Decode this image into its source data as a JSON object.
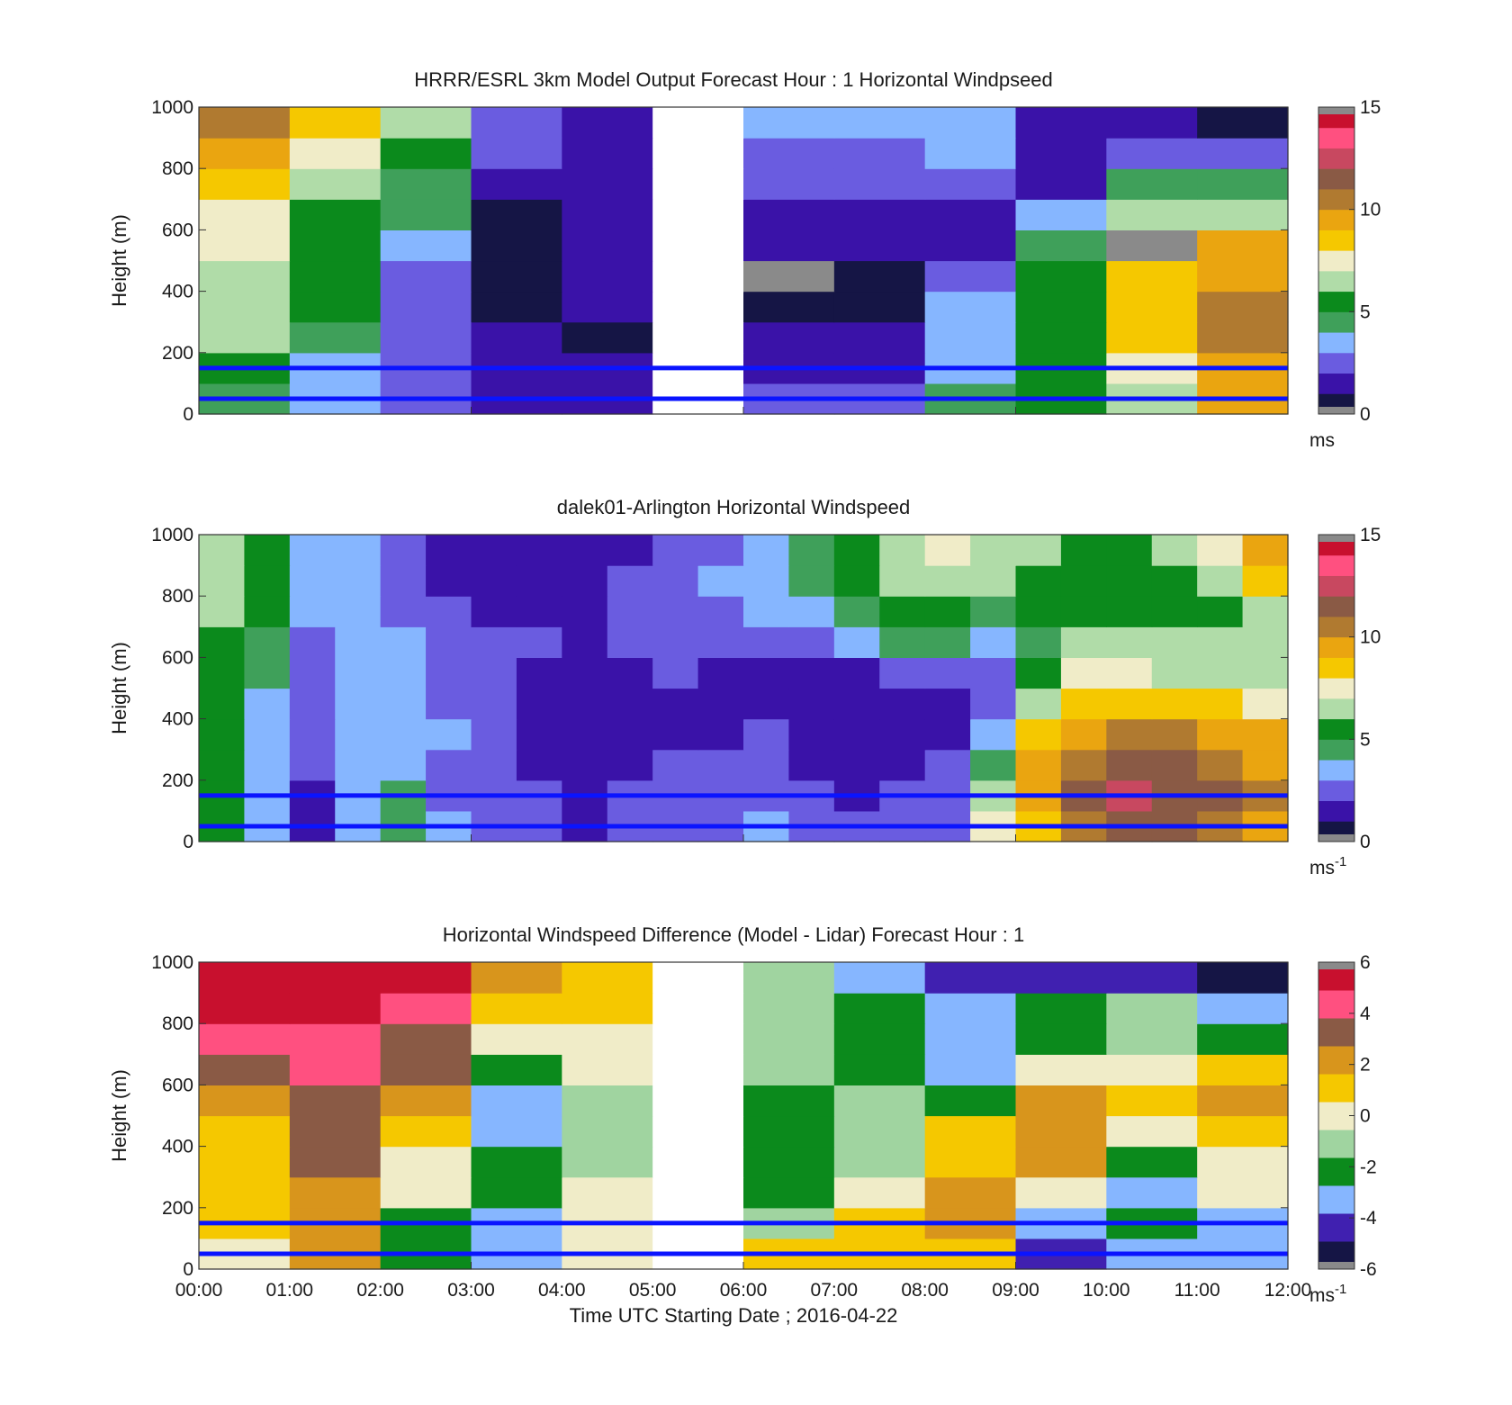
{
  "colors": {
    "speed_scale": [
      "#151545",
      "#3a12a8",
      "#6a5ce0",
      "#86b6ff",
      "#3fa05a",
      "#0b8a1c",
      "#b0dca8",
      "#f0ecc8",
      "#f5c800",
      "#eaa510",
      "#b07a30",
      "#8a5a45",
      "#c84860",
      "#ff5080",
      "#c8102e"
    ],
    "diff_scale": [
      "#151545",
      "#4020b0",
      "#86b6ff",
      "#0b8a1c",
      "#a0d4a0",
      "#f0ecc8",
      "#f5c800",
      "#d8951c",
      "#8a5a45",
      "#ff5080",
      "#c8102e"
    ],
    "blue_line": "#0a14ff",
    "missing": "#8a8a8a"
  },
  "chart_data": [
    {
      "type": "heatmap",
      "title": "HRRR/ESRL 3km Model Output   Forecast Hour : 1 Horizontal Windpseed",
      "ylabel": "Height (m)",
      "xlabel": "",
      "ylim": [
        0,
        1000
      ],
      "yticks": [
        "0",
        "200",
        "400",
        "600",
        "800",
        "1000"
      ],
      "x_hours": [
        "00:00",
        "01:00",
        "02:00",
        "03:00",
        "04:00",
        "05:00",
        "06:00",
        "07:00",
        "08:00",
        "09:00",
        "10:00",
        "11:00"
      ],
      "heights": [
        50,
        150,
        250,
        350,
        450,
        550,
        650,
        750,
        850,
        950
      ],
      "z": [
        [
          4.5,
          3.5,
          2.5,
          1.5,
          1.5,
          null,
          2.0,
          2.5,
          4.0,
          5.5,
          6.8,
          9.0
        ],
        [
          5.5,
          3.8,
          2.5,
          1.2,
          1.0,
          null,
          1.3,
          1.5,
          3.8,
          5.8,
          7.3,
          9.8
        ],
        [
          6.0,
          4.0,
          2.0,
          1.2,
          0.9,
          null,
          1.0,
          1.2,
          3.2,
          5.8,
          8.0,
          10.5
        ],
        [
          6.3,
          5.0,
          2.5,
          0.8,
          1.0,
          null,
          0.6,
          0.9,
          3.0,
          5.0,
          8.8,
          10.3
        ],
        [
          6.6,
          5.0,
          2.5,
          0.6,
          1.0,
          null,
          null,
          0.8,
          2.0,
          5.0,
          8.5,
          9.5
        ],
        [
          7.0,
          5.2,
          3.8,
          0.6,
          1.0,
          null,
          1.0,
          1.0,
          1.8,
          4.2,
          null,
          9.0
        ],
        [
          7.8,
          5.8,
          4.5,
          0.6,
          1.2,
          null,
          1.6,
          1.8,
          1.8,
          3.0,
          6.0,
          6.0
        ],
        [
          8.8,
          6.5,
          4.2,
          1.0,
          1.3,
          null,
          2.2,
          2.2,
          2.2,
          1.6,
          4.5,
          4.2
        ],
        [
          9.5,
          7.0,
          5.5,
          2.0,
          1.3,
          null,
          2.8,
          2.8,
          3.2,
          1.3,
          2.8,
          2.2
        ],
        [
          10.0,
          8.5,
          6.2,
          2.6,
          1.2,
          null,
          3.0,
          3.2,
          3.6,
          1.4,
          1.0,
          0.6
        ]
      ],
      "colorbar": {
        "min": 0,
        "max": 15,
        "ticks": [
          "0",
          "5",
          "10",
          "15"
        ],
        "unit": "ms",
        "unit_sup": ""
      },
      "reference_lines_m": [
        50,
        150
      ],
      "annotations": []
    },
    {
      "type": "heatmap",
      "title": "dalek01-Arlington  Horizontal Windspeed",
      "ylabel": "Height (m)",
      "xlabel": "",
      "ylim": [
        0,
        1000
      ],
      "yticks": [
        "0",
        "200",
        "400",
        "600",
        "800",
        "1000"
      ],
      "x_hours": [
        "00:00",
        "00:30",
        "01:00",
        "01:30",
        "02:00",
        "02:30",
        "03:00",
        "03:30",
        "04:00",
        "04:30",
        "05:00",
        "05:30",
        "06:00",
        "06:30",
        "07:00",
        "07:30",
        "08:00",
        "08:30",
        "09:00",
        "09:30",
        "10:00",
        "10:30",
        "11:00",
        "11:30"
      ],
      "heights": [
        50,
        150,
        250,
        350,
        450,
        550,
        650,
        750,
        850,
        950
      ],
      "z": [
        [
          5.0,
          3.2,
          1.5,
          3.0,
          4.5,
          3.0,
          2.5,
          2.0,
          1.8,
          2.2,
          2.8,
          2.5,
          3.0,
          2.2,
          2.0,
          2.5,
          2.8,
          7.0,
          8.8,
          10.5,
          11.5,
          11.0,
          10.5,
          9.8
        ],
        [
          5.2,
          3.0,
          1.5,
          3.0,
          4.0,
          2.8,
          2.2,
          2.0,
          1.5,
          2.0,
          2.5,
          2.2,
          2.8,
          2.0,
          1.8,
          2.2,
          2.5,
          6.0,
          9.5,
          11.0,
          12.0,
          11.5,
          11.0,
          10.0
        ],
        [
          5.0,
          3.2,
          2.0,
          3.2,
          3.8,
          2.8,
          2.0,
          1.8,
          1.5,
          1.5,
          2.0,
          2.0,
          2.5,
          1.8,
          1.5,
          1.8,
          2.2,
          4.5,
          9.0,
          10.5,
          11.5,
          11.0,
          10.5,
          9.5
        ],
        [
          5.5,
          3.5,
          2.2,
          3.5,
          3.8,
          3.0,
          2.2,
          1.8,
          1.5,
          1.3,
          1.5,
          1.5,
          2.0,
          1.5,
          1.2,
          1.5,
          1.8,
          3.5,
          8.0,
          9.5,
          10.5,
          10.0,
          9.8,
          9.0
        ],
        [
          5.8,
          3.8,
          2.0,
          3.2,
          3.5,
          2.8,
          2.0,
          1.8,
          1.5,
          1.5,
          1.5,
          1.3,
          1.5,
          1.2,
          1.0,
          1.2,
          1.2,
          2.5,
          6.5,
          8.0,
          8.5,
          8.0,
          8.0,
          7.5
        ],
        [
          5.5,
          4.0,
          2.2,
          3.0,
          3.2,
          2.5,
          2.0,
          1.8,
          1.6,
          1.8,
          2.0,
          1.8,
          1.8,
          1.5,
          1.8,
          2.2,
          2.5,
          2.8,
          5.5,
          7.0,
          7.0,
          6.8,
          6.8,
          6.5
        ],
        [
          5.8,
          4.5,
          2.5,
          3.2,
          3.0,
          2.2,
          2.0,
          2.0,
          1.8,
          2.0,
          2.5,
          2.2,
          2.5,
          2.8,
          3.2,
          4.0,
          4.8,
          3.0,
          4.5,
          6.0,
          6.2,
          6.0,
          6.2,
          6.0
        ],
        [
          6.0,
          5.0,
          3.0,
          3.5,
          2.8,
          2.0,
          1.8,
          1.8,
          1.8,
          2.2,
          2.8,
          2.8,
          3.2,
          3.5,
          4.5,
          5.5,
          5.8,
          4.5,
          5.5,
          5.8,
          5.5,
          5.5,
          5.8,
          6.0
        ],
        [
          6.2,
          5.5,
          3.5,
          3.5,
          2.5,
          1.8,
          1.5,
          1.5,
          1.8,
          2.0,
          2.5,
          3.0,
          3.5,
          4.0,
          5.2,
          6.0,
          6.0,
          6.0,
          5.8,
          5.5,
          5.5,
          5.5,
          6.5,
          8.5
        ],
        [
          6.5,
          5.8,
          3.8,
          3.0,
          2.2,
          1.5,
          1.3,
          1.2,
          1.5,
          1.8,
          2.2,
          2.8,
          3.2,
          4.5,
          5.5,
          6.5,
          7.0,
          6.5,
          6.0,
          5.5,
          5.8,
          6.2,
          7.5,
          9.5
        ]
      ],
      "colorbar": {
        "min": 0,
        "max": 15,
        "ticks": [
          "0",
          "5",
          "10",
          "15"
        ],
        "unit": "ms",
        "unit_sup": "-1"
      },
      "reference_lines_m": [
        50,
        150
      ],
      "annotations": []
    },
    {
      "type": "heatmap",
      "title": "Horizontal Windspeed Difference (Model - Lidar) Forecast Hour : 1",
      "ylabel": "Height (m)",
      "xlabel": "Time UTC  Starting Date ; 2016-04-22",
      "ylim": [
        0,
        1000
      ],
      "yticks": [
        "0",
        "200",
        "400",
        "600",
        "800",
        "1000"
      ],
      "x_hours": [
        "00:00",
        "01:00",
        "02:00",
        "03:00",
        "04:00",
        "05:00",
        "06:00",
        "07:00",
        "08:00",
        "09:00",
        "10:00",
        "11:00"
      ],
      "xticks": [
        "00:00",
        "01:00",
        "02:00",
        "03:00",
        "04:00",
        "05:00",
        "06:00",
        "07:00",
        "08:00",
        "09:00",
        "10:00",
        "11:00",
        "12:00"
      ],
      "heights": [
        50,
        150,
        250,
        350,
        450,
        550,
        650,
        750,
        850,
        950
      ],
      "z": [
        [
          0.5,
          2.5,
          -2.5,
          -3.5,
          0.5,
          null,
          1.0,
          1.5,
          1.5,
          -4.0,
          -3.0,
          -3.0
        ],
        [
          0.8,
          2.5,
          -2.2,
          -3.0,
          0.5,
          null,
          -1.0,
          1.0,
          1.8,
          -3.0,
          -2.5,
          -3.0
        ],
        [
          0.8,
          2.5,
          -0.5,
          -2.5,
          -0.2,
          null,
          -2.0,
          -0.5,
          1.8,
          0.5,
          -2.8,
          -0.3
        ],
        [
          1.0,
          2.8,
          0.5,
          -2.5,
          -1.0,
          null,
          -2.5,
          -1.5,
          1.5,
          2.0,
          -2.0,
          0.5
        ],
        [
          1.5,
          3.0,
          1.5,
          -2.8,
          -1.2,
          null,
          -2.2,
          -1.5,
          0.8,
          2.5,
          0.5,
          1.5
        ],
        [
          2.0,
          3.5,
          2.0,
          -2.8,
          -1.0,
          null,
          -1.8,
          -1.5,
          -2.5,
          2.5,
          1.5,
          2.0
        ],
        [
          3.0,
          4.5,
          3.0,
          -2.5,
          -0.2,
          null,
          -1.5,
          -2.0,
          -3.0,
          0.5,
          0.5,
          1.0
        ],
        [
          4.0,
          4.5,
          3.8,
          0.5,
          0.5,
          null,
          -1.2,
          -2.2,
          -3.5,
          -2.5,
          -1.0,
          -2.5
        ],
        [
          5.0,
          5.0,
          4.8,
          1.5,
          1.5,
          null,
          -1.0,
          -2.5,
          -3.0,
          -2.0,
          -1.5,
          -3.5
        ],
        [
          5.5,
          5.5,
          5.5,
          2.0,
          1.5,
          null,
          -1.5,
          -2.8,
          -4.0,
          -4.5,
          -4.0,
          -5.0
        ]
      ],
      "colorbar": {
        "min": -6,
        "max": 6,
        "ticks": [
          "-6",
          "-4",
          "-2",
          "0",
          "2",
          "4",
          "6"
        ],
        "unit": "ms",
        "unit_sup": "-1"
      },
      "reference_lines_m": [
        50,
        150
      ],
      "annotations": []
    }
  ]
}
